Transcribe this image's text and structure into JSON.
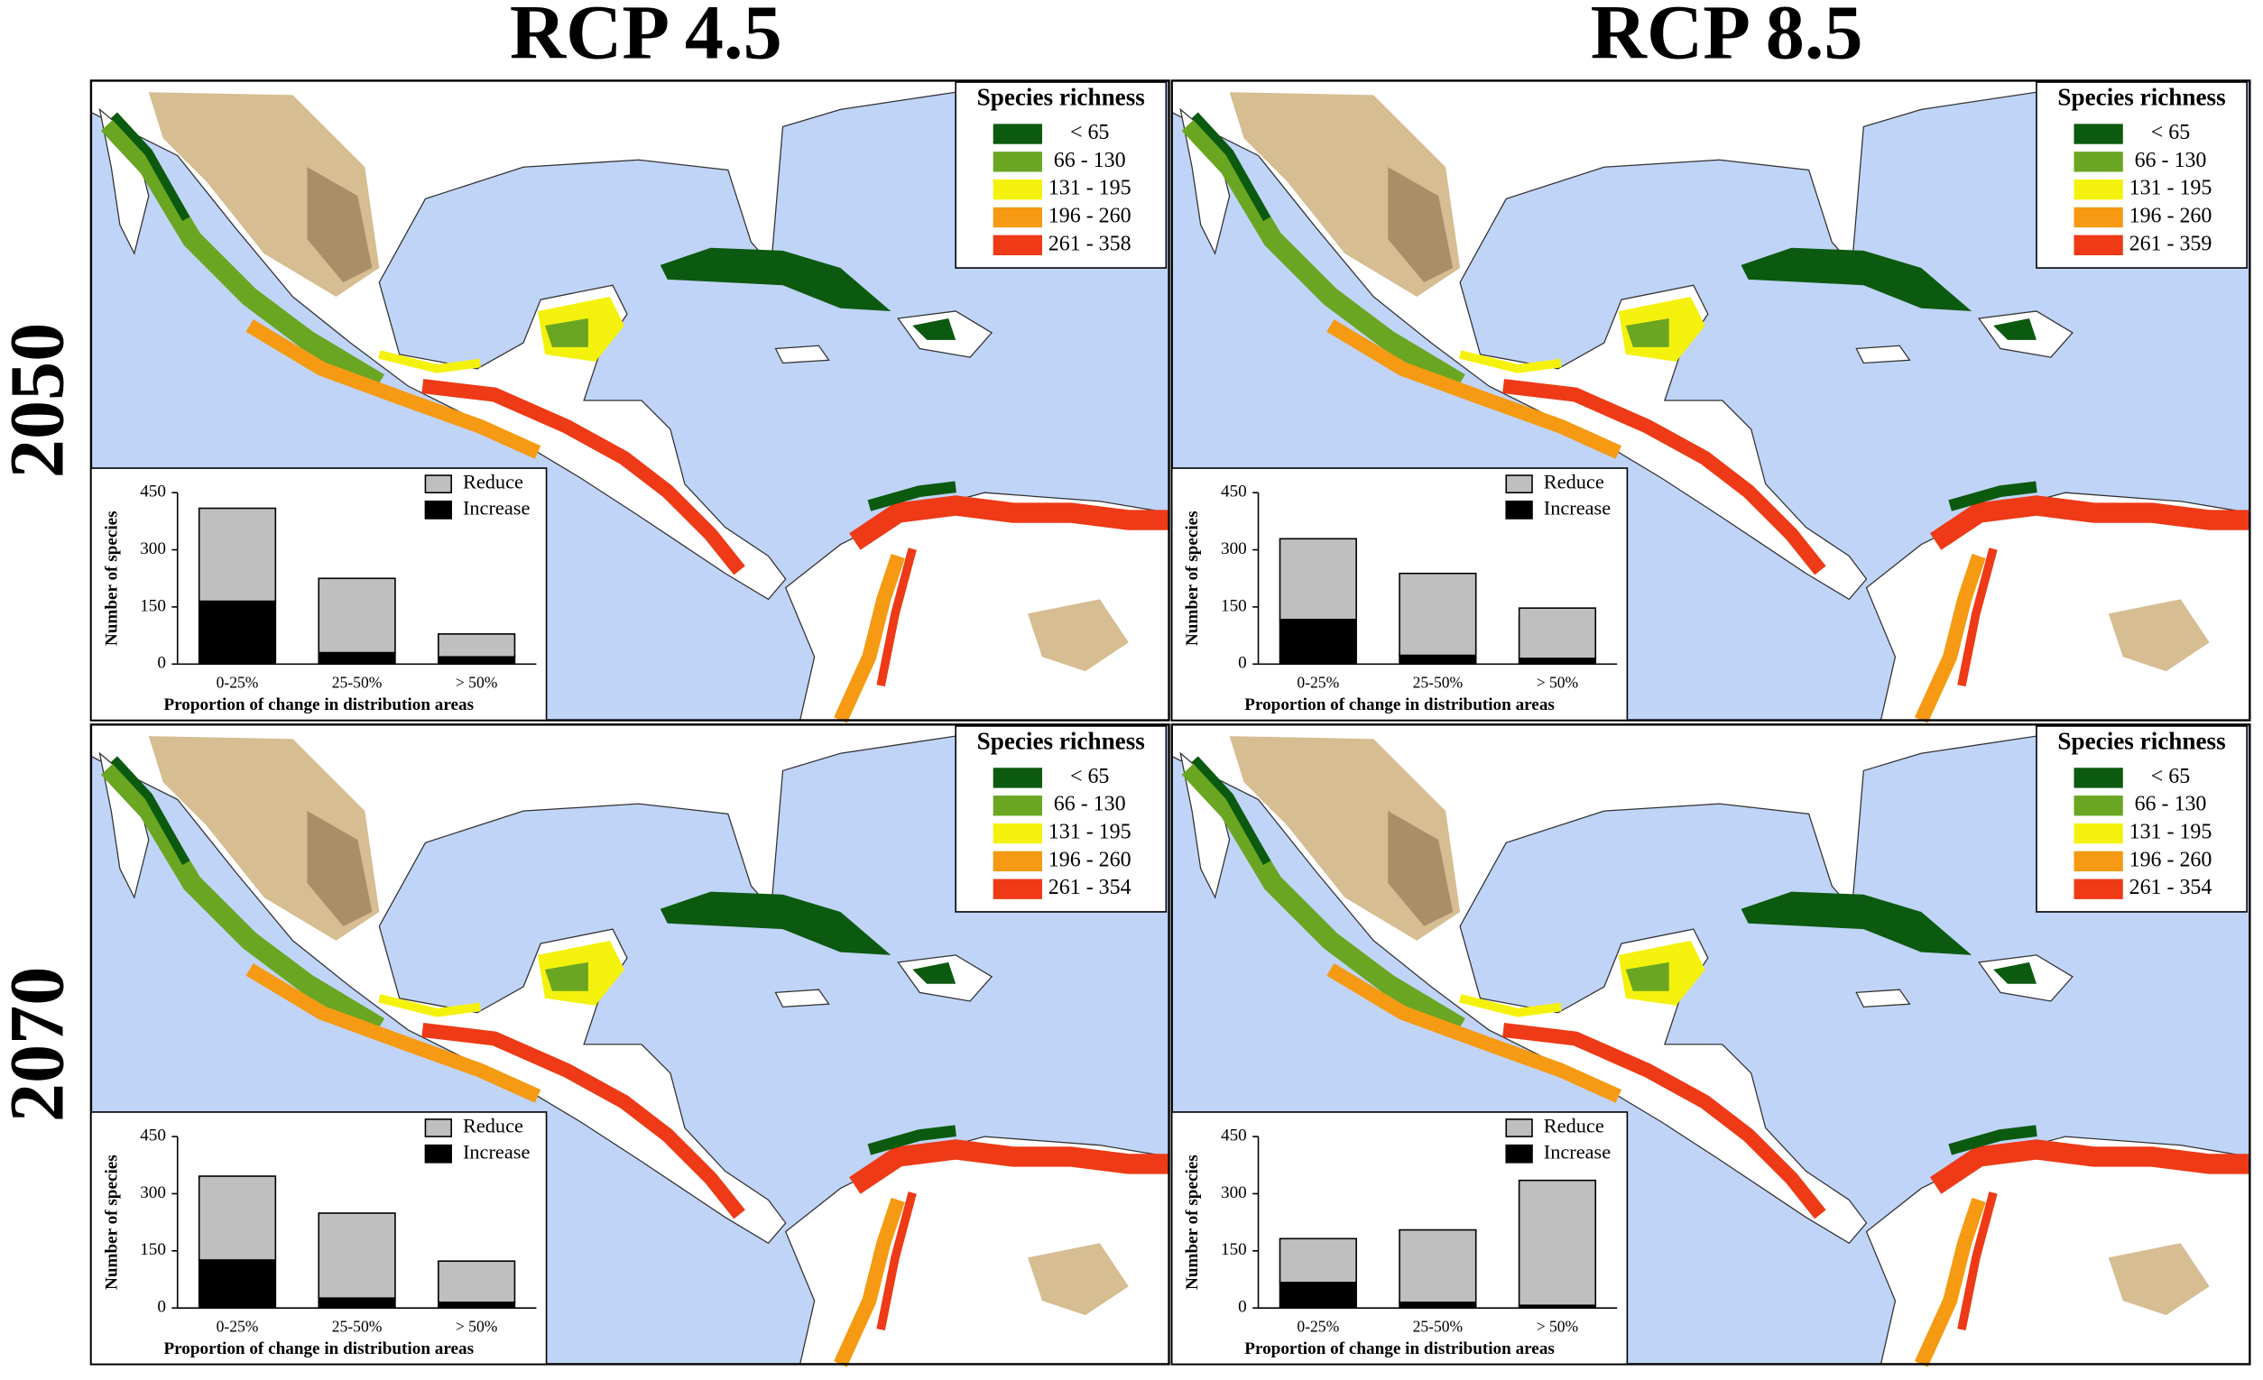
{
  "column_titles": [
    "RCP 4.5",
    "RCP 8.5"
  ],
  "row_titles": [
    "2050",
    "2070"
  ],
  "panels": [
    {
      "legend": {
        "title": "Species richness",
        "classes": [
          {
            "label": "< 65",
            "color": "#0c5a10"
          },
          {
            "label": "66 - 130",
            "color": "#6aa622"
          },
          {
            "label": "131 - 195",
            "color": "#f4f20c"
          },
          {
            "label": "196 - 260",
            "color": "#f59a12"
          },
          {
            "label": "261 - 358",
            "color": "#ee3a16"
          }
        ]
      }
    },
    {
      "legend": {
        "title": "Species richness",
        "classes": [
          {
            "label": "< 65",
            "color": "#0c5a10"
          },
          {
            "label": "66 - 130",
            "color": "#6aa622"
          },
          {
            "label": "131 - 195",
            "color": "#f4f20c"
          },
          {
            "label": "196 - 260",
            "color": "#f59a12"
          },
          {
            "label": "261 - 359",
            "color": "#ee3a16"
          }
        ]
      }
    },
    {
      "legend": {
        "title": "Species richness",
        "classes": [
          {
            "label": "< 65",
            "color": "#0c5a10"
          },
          {
            "label": "66 - 130",
            "color": "#6aa622"
          },
          {
            "label": "131 - 195",
            "color": "#f4f20c"
          },
          {
            "label": "196 - 260",
            "color": "#f59a12"
          },
          {
            "label": "261 - 354",
            "color": "#ee3a16"
          }
        ]
      }
    },
    {
      "legend": {
        "title": "Species richness",
        "classes": [
          {
            "label": "< 65",
            "color": "#0c5a10"
          },
          {
            "label": "66 - 130",
            "color": "#6aa622"
          },
          {
            "label": "131 - 195",
            "color": "#f4f20c"
          },
          {
            "label": "196 - 260",
            "color": "#f59a12"
          },
          {
            "label": "261 - 354",
            "color": "#ee3a16"
          }
        ]
      }
    }
  ],
  "chart_data": [
    {
      "type": "bar",
      "stacked": true,
      "categories": [
        "0-25%",
        "25-50%",
        "> 50%"
      ],
      "series": [
        {
          "name": "Reduce",
          "color": "#bfbfbf",
          "values": [
            244,
            195,
            60
          ]
        },
        {
          "name": "Increase",
          "color": "#000000",
          "values": [
            165,
            30,
            19
          ]
        }
      ],
      "ylabel": "Number of species",
      "xlabel": "Proportion of change in distribution areas",
      "ylim": [
        0,
        450
      ],
      "yticks": [
        0,
        150,
        300,
        450
      ]
    },
    {
      "type": "bar",
      "stacked": true,
      "categories": [
        "0-25%",
        "25-50%",
        "> 50%"
      ],
      "series": [
        {
          "name": "Reduce",
          "color": "#bfbfbf",
          "values": [
            212,
            215,
            132
          ]
        },
        {
          "name": "Increase",
          "color": "#000000",
          "values": [
            117,
            23,
            15
          ]
        }
      ],
      "ylabel": "Number of species",
      "xlabel": "Proportion of change in distribution areas",
      "ylim": [
        0,
        450
      ],
      "yticks": [
        0,
        150,
        300,
        450
      ]
    },
    {
      "type": "bar",
      "stacked": true,
      "categories": [
        "0-25%",
        "25-50%",
        "> 50%"
      ],
      "series": [
        {
          "name": "Reduce",
          "color": "#bfbfbf",
          "values": [
            220,
            223,
            108
          ]
        },
        {
          "name": "Increase",
          "color": "#000000",
          "values": [
            126,
            26,
            15
          ]
        }
      ],
      "ylabel": "Number of species",
      "xlabel": "Proportion of change in distribution areas",
      "ylim": [
        0,
        450
      ],
      "yticks": [
        0,
        150,
        300,
        450
      ]
    },
    {
      "type": "bar",
      "stacked": true,
      "categories": [
        "0-25%",
        "25-50%",
        "> 50%"
      ],
      "series": [
        {
          "name": "Reduce",
          "color": "#bfbfbf",
          "values": [
            115,
            190,
            328
          ]
        },
        {
          "name": "Increase",
          "color": "#000000",
          "values": [
            67,
            15,
            7
          ]
        }
      ],
      "ylabel": "Number of species",
      "xlabel": "Proportion of change in distribution areas",
      "ylim": [
        0,
        450
      ],
      "yticks": [
        0,
        150,
        300,
        450
      ]
    }
  ]
}
